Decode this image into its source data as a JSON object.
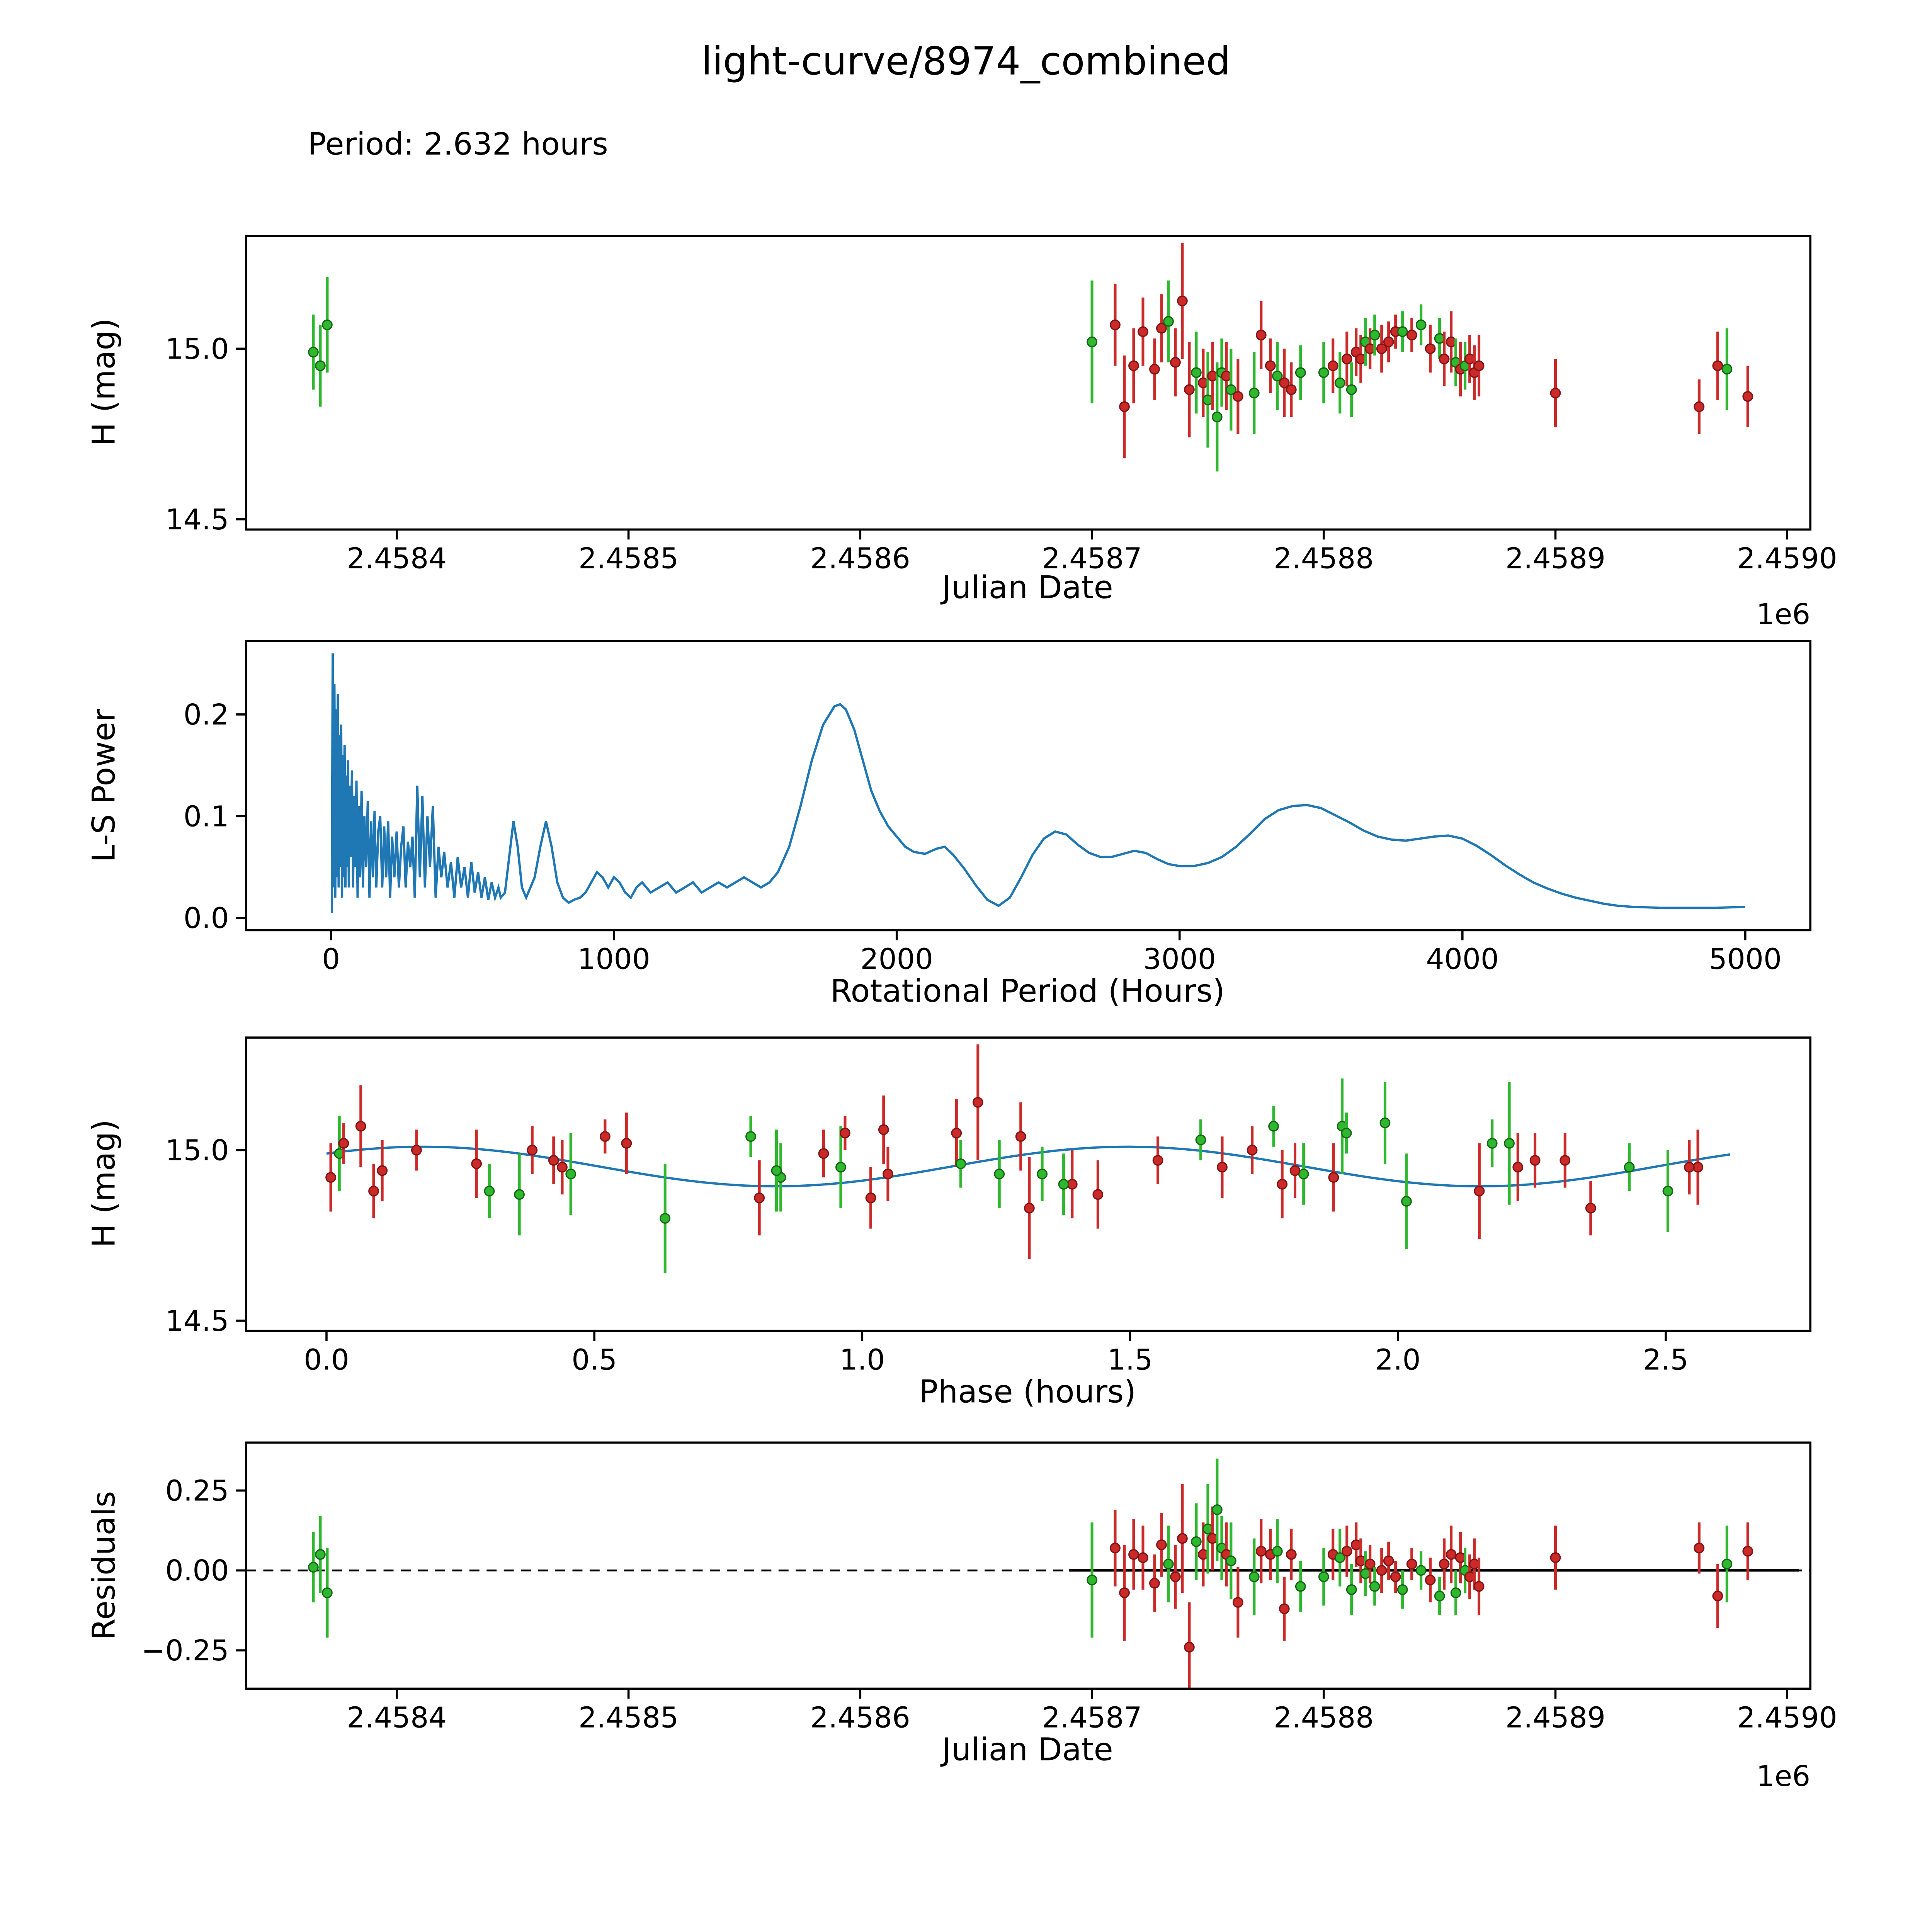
{
  "title": "light-curve/8974_combined",
  "period_label": "Period: 2.632 hours",
  "colors": {
    "green": "#2eb82e",
    "green_edge": "#166616",
    "red": "#cc2929",
    "red_edge": "#801414",
    "line_blue": "#1f77b4",
    "axis_black": "#000000"
  },
  "observations": [
    [
      2458364,
      14.99,
      0.11,
      "g",
      0.01
    ],
    [
      2458367,
      14.95,
      0.12,
      "g",
      0.05
    ],
    [
      2458370,
      15.07,
      0.14,
      "g",
      -0.07
    ],
    [
      2458700,
      15.02,
      0.18,
      "g",
      -0.03
    ],
    [
      2458710,
      15.07,
      0.12,
      "r",
      0.07
    ],
    [
      2458714,
      14.83,
      0.15,
      "r",
      -0.07
    ],
    [
      2458718,
      14.95,
      0.11,
      "r",
      0.05
    ],
    [
      2458722,
      15.05,
      0.1,
      "r",
      0.04
    ],
    [
      2458727,
      14.94,
      0.09,
      "r",
      -0.04
    ],
    [
      2458730,
      15.06,
      0.1,
      "r",
      0.08
    ],
    [
      2458733,
      15.08,
      0.12,
      "g",
      0.02
    ],
    [
      2458736,
      14.96,
      0.1,
      "r",
      -0.02
    ],
    [
      2458739,
      15.14,
      0.17,
      "r",
      0.1
    ],
    [
      2458742,
      14.88,
      0.14,
      "r",
      -0.24
    ],
    [
      2458745,
      14.93,
      0.12,
      "g",
      0.09
    ],
    [
      2458748,
      14.9,
      0.1,
      "r",
      0.05
    ],
    [
      2458750,
      14.85,
      0.14,
      "g",
      0.13
    ],
    [
      2458752,
      14.92,
      0.1,
      "r",
      0.1
    ],
    [
      2458754,
      14.8,
      0.16,
      "g",
      0.19
    ],
    [
      2458756,
      14.93,
      0.1,
      "g",
      0.07
    ],
    [
      2458758,
      14.92,
      0.1,
      "r",
      0.05
    ],
    [
      2458760,
      14.88,
      0.12,
      "g",
      0.03
    ],
    [
      2458763,
      14.86,
      0.11,
      "r",
      -0.1
    ],
    [
      2458770,
      14.87,
      0.12,
      "g",
      -0.02
    ],
    [
      2458773,
      15.04,
      0.1,
      "r",
      0.06
    ],
    [
      2458777,
      14.95,
      0.08,
      "r",
      0.05
    ],
    [
      2458780,
      14.92,
      0.1,
      "g",
      0.06
    ],
    [
      2458783,
      14.9,
      0.1,
      "r",
      -0.12
    ],
    [
      2458786,
      14.88,
      0.08,
      "r",
      0.05
    ],
    [
      2458790,
      14.93,
      0.08,
      "g",
      -0.05
    ],
    [
      2458800,
      14.93,
      0.09,
      "g",
      -0.02
    ],
    [
      2458804,
      14.95,
      0.08,
      "r",
      0.05
    ],
    [
      2458807,
      14.9,
      0.09,
      "g",
      0.04
    ],
    [
      2458810,
      14.97,
      0.08,
      "r",
      0.06
    ],
    [
      2458812,
      14.88,
      0.08,
      "g",
      -0.06
    ],
    [
      2458814,
      14.99,
      0.07,
      "r",
      0.08
    ],
    [
      2458816,
      14.97,
      0.07,
      "r",
      0.03
    ],
    [
      2458818,
      15.02,
      0.07,
      "g",
      -0.01
    ],
    [
      2458820,
      15.0,
      0.06,
      "r",
      0.02
    ],
    [
      2458822,
      15.04,
      0.06,
      "g",
      -0.05
    ],
    [
      2458825,
      15.0,
      0.07,
      "r",
      0.0
    ],
    [
      2458828,
      15.02,
      0.06,
      "r",
      0.03
    ],
    [
      2458831,
      15.05,
      0.05,
      "r",
      -0.02
    ],
    [
      2458834,
      15.05,
      0.06,
      "g",
      -0.06
    ],
    [
      2458838,
      15.04,
      0.05,
      "r",
      0.02
    ],
    [
      2458842,
      15.07,
      0.06,
      "g",
      0.0
    ],
    [
      2458846,
      15.0,
      0.07,
      "r",
      -0.03
    ],
    [
      2458850,
      15.03,
      0.06,
      "g",
      -0.08
    ],
    [
      2458852,
      14.97,
      0.08,
      "r",
      0.02
    ],
    [
      2458855,
      15.02,
      0.09,
      "r",
      0.05
    ],
    [
      2458857,
      14.96,
      0.07,
      "g",
      -0.07
    ],
    [
      2458859,
      14.94,
      0.08,
      "r",
      0.04
    ],
    [
      2458861,
      14.95,
      0.07,
      "g",
      0.0
    ],
    [
      2458863,
      14.97,
      0.07,
      "r",
      -0.02
    ],
    [
      2458865,
      14.93,
      0.08,
      "r",
      0.02
    ],
    [
      2458867,
      14.95,
      0.09,
      "r",
      -0.05
    ],
    [
      2458900,
      14.87,
      0.1,
      "r",
      0.04
    ],
    [
      2458962,
      14.83,
      0.08,
      "r",
      0.07
    ],
    [
      2458970,
      14.95,
      0.1,
      "r",
      -0.08
    ],
    [
      2458974,
      14.94,
      0.12,
      "g",
      0.02
    ],
    [
      2458983,
      14.86,
      0.09,
      "r",
      0.06
    ]
  ],
  "chart_data": [
    {
      "id": "lightcurve",
      "type": "scatter",
      "xlabel": "Julian Date",
      "ylabel": "H (mag)",
      "offset_text": "1e6",
      "xlim": [
        2458335,
        2459010
      ],
      "ylim": [
        14.47,
        15.33
      ],
      "xticks": [
        2458400,
        2458500,
        2458600,
        2458700,
        2458800,
        2458900,
        2459000
      ],
      "xtick_labels": [
        "2.4584",
        "2.4585",
        "2.4586",
        "2.4587",
        "2.4588",
        "2.4589",
        "2.4590"
      ],
      "yticks": [
        14.5,
        15.0
      ],
      "ytick_labels": [
        "14.5",
        "15.0"
      ],
      "points_source": "observations (jd, H mag, err, color)"
    },
    {
      "id": "periodogram",
      "type": "line",
      "xlabel": "Rotational Period (Hours)",
      "ylabel": "L-S Power",
      "xlim": [
        -300,
        5230
      ],
      "ylim": [
        -0.012,
        0.272
      ],
      "xticks": [
        0,
        1000,
        2000,
        3000,
        4000,
        5000
      ],
      "xtick_labels": [
        "0",
        "1000",
        "2000",
        "3000",
        "4000",
        "5000"
      ],
      "yticks": [
        0.0,
        0.1,
        0.2
      ],
      "ytick_labels": [
        "0.0",
        "0.1",
        "0.2"
      ],
      "series_xy": [
        [
          3,
          0.005
        ],
        [
          6,
          0.26
        ],
        [
          9,
          0.03
        ],
        [
          12,
          0.23
        ],
        [
          15,
          0.02
        ],
        [
          18,
          0.205
        ],
        [
          21,
          0.04
        ],
        [
          24,
          0.22
        ],
        [
          27,
          0.03
        ],
        [
          30,
          0.18
        ],
        [
          33,
          0.05
        ],
        [
          36,
          0.19
        ],
        [
          39,
          0.02
        ],
        [
          42,
          0.16
        ],
        [
          45,
          0.04
        ],
        [
          48,
          0.17
        ],
        [
          51,
          0.03
        ],
        [
          54,
          0.14
        ],
        [
          57,
          0.05
        ],
        [
          60,
          0.155
        ],
        [
          63,
          0.03
        ],
        [
          66,
          0.13
        ],
        [
          70,
          0.06
        ],
        [
          74,
          0.145
        ],
        [
          78,
          0.03
        ],
        [
          82,
          0.12
        ],
        [
          86,
          0.05
        ],
        [
          90,
          0.135
        ],
        [
          94,
          0.02
        ],
        [
          98,
          0.11
        ],
        [
          103,
          0.04
        ],
        [
          108,
          0.125
        ],
        [
          113,
          0.03
        ],
        [
          118,
          0.1
        ],
        [
          124,
          0.05
        ],
        [
          130,
          0.115
        ],
        [
          136,
          0.02
        ],
        [
          142,
          0.095
        ],
        [
          148,
          0.04
        ],
        [
          154,
          0.105
        ],
        [
          160,
          0.03
        ],
        [
          167,
          0.085
        ],
        [
          174,
          0.1
        ],
        [
          181,
          0.03
        ],
        [
          188,
          0.09
        ],
        [
          195,
          0.04
        ],
        [
          202,
          0.095
        ],
        [
          209,
          0.02
        ],
        [
          216,
          0.08
        ],
        [
          224,
          0.04
        ],
        [
          232,
          0.085
        ],
        [
          240,
          0.03
        ],
        [
          248,
          0.07
        ],
        [
          256,
          0.09
        ],
        [
          264,
          0.03
        ],
        [
          272,
          0.075
        ],
        [
          280,
          0.05
        ],
        [
          288,
          0.08
        ],
        [
          296,
          0.02
        ],
        [
          305,
          0.13
        ],
        [
          314,
          0.04
        ],
        [
          323,
          0.12
        ],
        [
          332,
          0.03
        ],
        [
          341,
          0.1
        ],
        [
          350,
          0.05
        ],
        [
          360,
          0.11
        ],
        [
          370,
          0.02
        ],
        [
          380,
          0.07
        ],
        [
          390,
          0.04
        ],
        [
          400,
          0.065
        ],
        [
          412,
          0.03
        ],
        [
          424,
          0.055
        ],
        [
          436,
          0.02
        ],
        [
          448,
          0.06
        ],
        [
          460,
          0.03
        ],
        [
          472,
          0.05
        ],
        [
          484,
          0.02
        ],
        [
          496,
          0.055
        ],
        [
          508,
          0.025
        ],
        [
          520,
          0.045
        ],
        [
          532,
          0.02
        ],
        [
          544,
          0.04
        ],
        [
          556,
          0.018
        ],
        [
          568,
          0.035
        ],
        [
          580,
          0.02
        ],
        [
          592,
          0.03
        ],
        [
          600,
          0.02
        ],
        [
          615,
          0.025
        ],
        [
          630,
          0.06
        ],
        [
          645,
          0.095
        ],
        [
          660,
          0.07
        ],
        [
          675,
          0.03
        ],
        [
          690,
          0.02
        ],
        [
          705,
          0.03
        ],
        [
          720,
          0.04
        ],
        [
          740,
          0.07
        ],
        [
          760,
          0.095
        ],
        [
          780,
          0.07
        ],
        [
          800,
          0.035
        ],
        [
          820,
          0.02
        ],
        [
          840,
          0.015
        ],
        [
          860,
          0.018
        ],
        [
          880,
          0.02
        ],
        [
          900,
          0.025
        ],
        [
          920,
          0.035
        ],
        [
          940,
          0.045
        ],
        [
          960,
          0.04
        ],
        [
          980,
          0.03
        ],
        [
          1000,
          0.04
        ],
        [
          1020,
          0.035
        ],
        [
          1040,
          0.025
        ],
        [
          1060,
          0.02
        ],
        [
          1080,
          0.03
        ],
        [
          1100,
          0.035
        ],
        [
          1130,
          0.025
        ],
        [
          1160,
          0.03
        ],
        [
          1190,
          0.035
        ],
        [
          1220,
          0.025
        ],
        [
          1250,
          0.03
        ],
        [
          1280,
          0.035
        ],
        [
          1310,
          0.025
        ],
        [
          1340,
          0.03
        ],
        [
          1370,
          0.035
        ],
        [
          1400,
          0.03
        ],
        [
          1430,
          0.035
        ],
        [
          1460,
          0.04
        ],
        [
          1490,
          0.035
        ],
        [
          1520,
          0.03
        ],
        [
          1550,
          0.035
        ],
        [
          1580,
          0.045
        ],
        [
          1620,
          0.07
        ],
        [
          1660,
          0.11
        ],
        [
          1700,
          0.155
        ],
        [
          1740,
          0.19
        ],
        [
          1780,
          0.208
        ],
        [
          1800,
          0.21
        ],
        [
          1820,
          0.205
        ],
        [
          1850,
          0.185
        ],
        [
          1880,
          0.155
        ],
        [
          1910,
          0.125
        ],
        [
          1940,
          0.105
        ],
        [
          1970,
          0.09
        ],
        [
          2000,
          0.08
        ],
        [
          2030,
          0.07
        ],
        [
          2060,
          0.065
        ],
        [
          2100,
          0.063
        ],
        [
          2140,
          0.068
        ],
        [
          2170,
          0.07
        ],
        [
          2200,
          0.062
        ],
        [
          2240,
          0.048
        ],
        [
          2280,
          0.032
        ],
        [
          2320,
          0.018
        ],
        [
          2360,
          0.012
        ],
        [
          2400,
          0.02
        ],
        [
          2440,
          0.04
        ],
        [
          2480,
          0.062
        ],
        [
          2520,
          0.078
        ],
        [
          2560,
          0.085
        ],
        [
          2600,
          0.082
        ],
        [
          2640,
          0.072
        ],
        [
          2680,
          0.064
        ],
        [
          2720,
          0.06
        ],
        [
          2760,
          0.06
        ],
        [
          2800,
          0.063
        ],
        [
          2840,
          0.066
        ],
        [
          2880,
          0.064
        ],
        [
          2920,
          0.058
        ],
        [
          2960,
          0.053
        ],
        [
          3000,
          0.051
        ],
        [
          3050,
          0.051
        ],
        [
          3100,
          0.054
        ],
        [
          3150,
          0.06
        ],
        [
          3200,
          0.07
        ],
        [
          3250,
          0.083
        ],
        [
          3300,
          0.097
        ],
        [
          3350,
          0.106
        ],
        [
          3400,
          0.11
        ],
        [
          3450,
          0.111
        ],
        [
          3500,
          0.108
        ],
        [
          3550,
          0.101
        ],
        [
          3600,
          0.094
        ],
        [
          3650,
          0.086
        ],
        [
          3700,
          0.08
        ],
        [
          3750,
          0.077
        ],
        [
          3800,
          0.076
        ],
        [
          3850,
          0.078
        ],
        [
          3900,
          0.08
        ],
        [
          3950,
          0.081
        ],
        [
          4000,
          0.078
        ],
        [
          4050,
          0.071
        ],
        [
          4100,
          0.062
        ],
        [
          4150,
          0.052
        ],
        [
          4200,
          0.043
        ],
        [
          4250,
          0.035
        ],
        [
          4300,
          0.029
        ],
        [
          4350,
          0.024
        ],
        [
          4400,
          0.02
        ],
        [
          4450,
          0.017
        ],
        [
          4500,
          0.014
        ],
        [
          4550,
          0.012
        ],
        [
          4600,
          0.011
        ],
        [
          4700,
          0.01
        ],
        [
          4800,
          0.01
        ],
        [
          4900,
          0.01
        ],
        [
          5000,
          0.011
        ]
      ]
    },
    {
      "id": "phase",
      "type": "scatter",
      "xlabel": "Phase (hours)",
      "ylabel": "H (mag)",
      "xlim": [
        -0.15,
        2.77
      ],
      "ylim": [
        14.47,
        15.33
      ],
      "xticks": [
        0.0,
        0.5,
        1.0,
        1.5,
        2.0,
        2.5
      ],
      "xtick_labels": [
        "0.0",
        "0.5",
        "1.0",
        "1.5",
        "2.0",
        "2.5"
      ],
      "yticks": [
        14.5,
        15.0
      ],
      "ytick_labels": [
        "14.5",
        "15.0"
      ],
      "period_hours": 2.632,
      "model": {
        "mean": 14.952,
        "amplitude": 0.058,
        "half_period_hours": 1.316,
        "peak_phase": 0.18
      },
      "points_source": "observations folded at period 2.632 h"
    },
    {
      "id": "residuals",
      "type": "scatter",
      "xlabel": "Julian Date",
      "ylabel": "Residuals",
      "offset_text": "1e6",
      "xlim": [
        2458335,
        2459010
      ],
      "ylim": [
        -0.37,
        0.4
      ],
      "xticks": [
        2458400,
        2458500,
        2458600,
        2458700,
        2458800,
        2458900,
        2459000
      ],
      "xtick_labels": [
        "2.4584",
        "2.4585",
        "2.4586",
        "2.4587",
        "2.4588",
        "2.4589",
        "2.4590"
      ],
      "yticks": [
        -0.25,
        0.0,
        0.25
      ],
      "ytick_labels": [
        "−0.25",
        "0.00",
        "0.25"
      ],
      "zero_line_dashed": true,
      "fit_line_range": [
        2458690,
        2459005
      ],
      "points_source": "observations (jd, residual, err, color)"
    }
  ]
}
